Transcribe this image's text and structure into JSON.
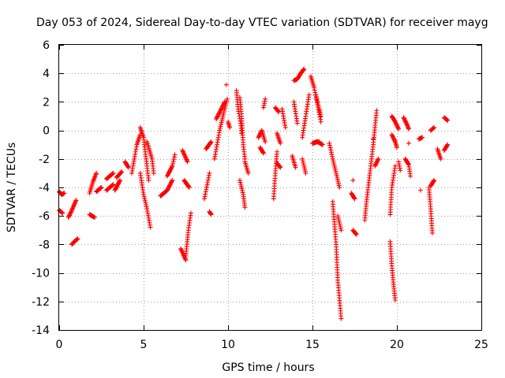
{
  "chart_data": {
    "type": "scatter",
    "title": "Day 053 of 2024, Sidereal Day-to-day VTEC variation (SDTVAR) for receiver mayg",
    "xlabel": "GPS time / hours",
    "ylabel": "SDTVAR / TECUs",
    "xlim": [
      0,
      25
    ],
    "ylim": [
      -14,
      6
    ],
    "xticks": [
      0,
      5,
      10,
      15,
      20,
      25
    ],
    "yticks": [
      -14,
      -12,
      -10,
      -8,
      -6,
      -4,
      -2,
      0,
      2,
      4,
      6
    ],
    "x_tick_labels": [
      "0",
      "5",
      "10",
      "15",
      "20",
      "25"
    ],
    "y_tick_labels": [
      "-14",
      "-12",
      "-10",
      "-8",
      "-6",
      "-4",
      "-2",
      "0",
      "2",
      "4",
      "6"
    ],
    "grid": true,
    "marker": "+",
    "color": "#ff0000",
    "series": [
      {
        "name": "SDTVAR",
        "tracks": [
          {
            "x": [
              0.0,
              0.15,
              0.3
            ],
            "y": [
              -4.3,
              -4.5,
              -4.4
            ]
          },
          {
            "x": [
              0.0,
              0.2
            ],
            "y": [
              -5.6,
              -5.8
            ]
          },
          {
            "x": [
              0.55,
              0.75,
              1.0
            ],
            "y": [
              -6.1,
              -5.6,
              -4.9
            ]
          },
          {
            "x": [
              0.75,
              0.9,
              1.1
            ],
            "y": [
              -8.0,
              -7.8,
              -7.6
            ]
          },
          {
            "x": [
              1.8,
              2.0,
              2.2
            ],
            "y": [
              -4.4,
              -3.6,
              -3.0
            ]
          },
          {
            "x": [
              1.8,
              2.1
            ],
            "y": [
              -5.9,
              -6.1
            ]
          },
          {
            "x": [
              2.2,
              2.5
            ],
            "y": [
              -4.3,
              -4.0
            ]
          },
          {
            "x": [
              2.8,
              3.2
            ],
            "y": [
              -3.4,
              -3.0
            ]
          },
          {
            "x": [
              2.8,
              3.2
            ],
            "y": [
              -4.2,
              -3.8
            ]
          },
          {
            "x": [
              3.3,
              3.6
            ],
            "y": [
              -4.2,
              -3.5
            ]
          },
          {
            "x": [
              3.4,
              3.7
            ],
            "y": [
              -3.3,
              -2.9
            ]
          },
          {
            "x": [
              3.9,
              4.1
            ],
            "y": [
              -2.2,
              -2.6
            ]
          },
          {
            "x": [
              4.3,
              4.6,
              4.8
            ],
            "y": [
              -3.0,
              -1.0,
              -0.3
            ]
          },
          {
            "x": [
              4.8,
              5.0,
              5.2,
              5.3
            ],
            "y": [
              0.2,
              -0.5,
              -2.5,
              -3.5
            ]
          },
          {
            "x": [
              4.8,
              5.0,
              5.2,
              5.4
            ],
            "y": [
              -3.0,
              -4.5,
              -5.5,
              -6.8
            ]
          },
          {
            "x": [
              5.2,
              5.5,
              5.6
            ],
            "y": [
              -0.8,
              -2.0,
              -3.0
            ]
          },
          {
            "x": [
              6.0,
              6.4,
              6.7
            ],
            "y": [
              -4.6,
              -4.2,
              -3.5
            ]
          },
          {
            "x": [
              6.4,
              6.7,
              6.85
            ],
            "y": [
              -3.2,
              -2.5,
              -1.7
            ]
          },
          {
            "x": [
              7.2,
              7.5
            ],
            "y": [
              -8.3,
              -9.1
            ]
          },
          {
            "x": [
              7.5,
              7.65,
              7.8
            ],
            "y": [
              -8.8,
              -7.0,
              -5.8
            ]
          },
          {
            "x": [
              7.3,
              7.6
            ],
            "y": [
              -1.4,
              -2.2
            ]
          },
          {
            "x": [
              7.4,
              7.7
            ],
            "y": [
              -3.5,
              -4.0
            ]
          },
          {
            "x": [
              8.6,
              8.9
            ],
            "y": [
              -4.8,
              -3.0
            ]
          },
          {
            "x": [
              8.7,
              9.0
            ],
            "y": [
              -1.3,
              -0.8
            ]
          },
          {
            "x": [
              8.9,
              9.0
            ],
            "y": [
              -5.7,
              -5.9
            ]
          },
          {
            "x": [
              9.2,
              9.5,
              9.8,
              9.95
            ],
            "y": [
              -2.0,
              0.0,
              1.5,
              2.2
            ]
          },
          {
            "x": [
              9.3,
              9.6,
              9.8
            ],
            "y": [
              0.8,
              1.5,
              2.0
            ]
          },
          {
            "x": [
              9.9
            ],
            "y": [
              3.2
            ]
          },
          {
            "x": [
              10.0,
              10.1
            ],
            "y": [
              0.6,
              0.2
            ]
          },
          {
            "x": [
              10.5,
              10.6,
              10.75,
              10.8
            ],
            "y": [
              2.8,
              1.5,
              0.5,
              -0.2
            ]
          },
          {
            "x": [
              10.7,
              10.8,
              10.9,
              11.0
            ],
            "y": [
              2.3,
              1.0,
              -1.0,
              -2.0
            ]
          },
          {
            "x": [
              10.7,
              10.9,
              11.0
            ],
            "y": [
              -3.5,
              -4.5,
              -5.4
            ]
          },
          {
            "x": [
              11.0,
              11.2
            ],
            "y": [
              -2.2,
              -3.0
            ]
          },
          {
            "x": [
              11.8,
              12.0,
              12.2
            ],
            "y": [
              -0.5,
              0.0,
              -0.8
            ]
          },
          {
            "x": [
              12.1,
              12.2
            ],
            "y": [
              1.6,
              2.2
            ]
          },
          {
            "x": [
              11.9,
              12.1
            ],
            "y": [
              -1.2,
              -1.6
            ]
          },
          {
            "x": [
              12.7,
              12.8,
              12.9
            ],
            "y": [
              -4.8,
              -3.0,
              -1.5
            ]
          },
          {
            "x": [
              12.9,
              13.1
            ],
            "y": [
              -2.3,
              -2.6
            ]
          },
          {
            "x": [
              12.9,
              13.1
            ],
            "y": [
              -0.2,
              -0.9
            ]
          },
          {
            "x": [
              12.8,
              13.0
            ],
            "y": [
              1.6,
              1.3
            ]
          },
          {
            "x": [
              13.2,
              13.4
            ],
            "y": [
              1.5,
              0.2
            ]
          },
          {
            "x": [
              13.9,
              14.1,
              14.3,
              14.5
            ],
            "y": [
              3.5,
              3.6,
              4.0,
              4.3
            ]
          },
          {
            "x": [
              13.9,
              14.1
            ],
            "y": [
              2.0,
              0.5
            ]
          },
          {
            "x": [
              13.8,
              14.0
            ],
            "y": [
              -1.8,
              -2.6
            ]
          },
          {
            "x": [
              14.4,
              14.6,
              14.8
            ],
            "y": [
              -0.5,
              1.0,
              2.5
            ]
          },
          {
            "x": [
              14.4,
              14.6
            ],
            "y": [
              -2.0,
              -3.0
            ]
          },
          {
            "x": [
              14.9,
              15.1,
              15.3,
              15.5
            ],
            "y": [
              3.8,
              3.0,
              1.8,
              0.6
            ]
          },
          {
            "x": [
              15.2,
              15.4,
              15.5
            ],
            "y": [
              2.5,
              1.5,
              1.0
            ]
          },
          {
            "x": [
              15.0,
              15.3,
              15.6
            ],
            "y": [
              -0.9,
              -0.8,
              -1.0
            ]
          },
          {
            "x": [
              15.2,
              15.4
            ],
            "y": [
              -0.8,
              -0.8
            ]
          },
          {
            "x": [
              16.0,
              16.2,
              16.4,
              16.6
            ],
            "y": [
              -0.9,
              -2.0,
              -3.0,
              -4.0
            ]
          },
          {
            "x": [
              16.2,
              16.4,
              16.5,
              16.7
            ],
            "y": [
              -5.0,
              -8.0,
              -10.5,
              -13.2
            ]
          },
          {
            "x": [
              16.5,
              16.7
            ],
            "y": [
              -6.0,
              -7.0
            ]
          },
          {
            "x": [
              17.3,
              17.5
            ],
            "y": [
              -4.4,
              -4.8
            ]
          },
          {
            "x": [
              17.4,
              17.6
            ],
            "y": [
              -7.0,
              -7.3
            ]
          },
          {
            "x": [
              17.4
            ],
            "y": [
              -3.5
            ]
          },
          {
            "x": [
              18.1,
              18.2,
              18.4,
              18.6,
              18.8
            ],
            "y": [
              -6.3,
              -5.0,
              -3.0,
              -1.0,
              1.4
            ]
          },
          {
            "x": [
              18.7,
              18.9
            ],
            "y": [
              -2.5,
              -2.0
            ]
          },
          {
            "x": [
              18.6
            ],
            "y": [
              -0.6
            ]
          },
          {
            "x": [
              19.6,
              19.7,
              19.8,
              19.9
            ],
            "y": [
              -7.8,
              -9.5,
              -10.8,
              -11.9
            ]
          },
          {
            "x": [
              19.6,
              19.7,
              19.9
            ],
            "y": [
              -5.9,
              -4.0,
              -2.5
            ]
          },
          {
            "x": [
              19.7,
              19.9,
              20.0
            ],
            "y": [
              -0.3,
              -0.8,
              -1.2
            ]
          },
          {
            "x": [
              19.7,
              19.9,
              20.1
            ],
            "y": [
              1.0,
              0.6,
              0.1
            ]
          },
          {
            "x": [
              20.1,
              20.2
            ],
            "y": [
              -2.2,
              -2.8
            ]
          },
          {
            "x": [
              20.4,
              20.6,
              20.7
            ],
            "y": [
              0.9,
              0.4,
              0.1
            ]
          },
          {
            "x": [
              20.5,
              20.7,
              20.8
            ],
            "y": [
              -2.0,
              -2.4,
              -3.2
            ]
          },
          {
            "x": [
              20.7
            ],
            "y": [
              -0.9
            ]
          },
          {
            "x": [
              21.3,
              21.5
            ],
            "y": [
              -0.6,
              -0.5
            ]
          },
          {
            "x": [
              21.4
            ],
            "y": [
              -4.2
            ]
          },
          {
            "x": [
              21.9,
              22.0,
              22.1
            ],
            "y": [
              -4.0,
              -5.5,
              -7.2
            ]
          },
          {
            "x": [
              22.0,
              22.2
            ],
            "y": [
              -3.9,
              -3.5
            ]
          },
          {
            "x": [
              22.0,
              22.2
            ],
            "y": [
              0.0,
              0.2
            ]
          },
          {
            "x": [
              22.4,
              22.6
            ],
            "y": [
              -1.3,
              -2.0
            ]
          },
          {
            "x": [
              22.8,
              23.0
            ],
            "y": [
              -1.4,
              -1.0
            ]
          },
          {
            "x": [
              22.8,
              23.0
            ],
            "y": [
              0.9,
              0.7
            ]
          }
        ]
      }
    ]
  }
}
